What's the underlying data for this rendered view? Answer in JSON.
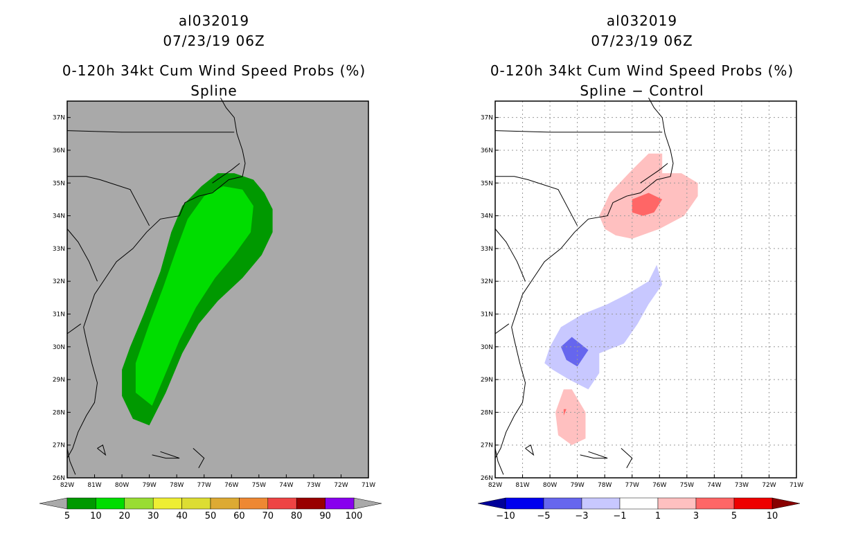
{
  "panels": [
    {
      "storm_id": "al032019",
      "datetime": "07/23/19 06Z",
      "title": "0-120h 34kt Cum Wind Speed Probs (%)",
      "subtitle": "Spline",
      "map_background": "#a9a9a9",
      "colorbar": {
        "under_color": "#a9a9a9",
        "over_color": "#a9a9a9",
        "bins": [
          {
            "color": "#009900"
          },
          {
            "color": "#00dd00"
          },
          {
            "color": "#99dd33"
          },
          {
            "color": "#eeee33"
          },
          {
            "color": "#dddd33"
          },
          {
            "color": "#ddaa33"
          },
          {
            "color": "#ee8833"
          },
          {
            "color": "#ee4444"
          },
          {
            "color": "#990000"
          },
          {
            "color": "#8800ee"
          }
        ],
        "labels": [
          "5",
          "10",
          "20",
          "30",
          "40",
          "50",
          "60",
          "70",
          "80",
          "90",
          "100"
        ]
      }
    },
    {
      "storm_id": "al032019",
      "datetime": "07/23/19 06Z",
      "title": "0-120h 34kt Cum Wind Speed Probs (%)",
      "subtitle": "Spline − Control",
      "map_background": "#ffffff",
      "colorbar": {
        "under_color": "#000099",
        "over_color": "#880000",
        "bins": [
          {
            "color": "#0000ee"
          },
          {
            "color": "#6666ee"
          },
          {
            "color": "#c8c8ff"
          },
          {
            "color": "#ffffff"
          },
          {
            "color": "#ffc0c0"
          },
          {
            "color": "#ff6666"
          },
          {
            "color": "#ee0000"
          }
        ],
        "labels": [
          "−10",
          "−5",
          "−3",
          "−1",
          "1",
          "3",
          "5",
          "10"
        ]
      }
    }
  ],
  "axes": {
    "lon_labels": [
      "82W",
      "81W",
      "80W",
      "79W",
      "78W",
      "77W",
      "76W",
      "75W",
      "74W",
      "73W",
      "72W",
      "71W"
    ],
    "lat_labels": [
      "26N",
      "27N",
      "28N",
      "29N",
      "30N",
      "31N",
      "32N",
      "33N",
      "34N",
      "35N",
      "36N",
      "37N"
    ]
  },
  "chart_data": [
    {
      "type": "map-contour",
      "field": "0-120h 34kt cumulative wind speed probability (%)",
      "domain": {
        "lon": [
          -82,
          -71
        ],
        "lat": [
          26,
          37.5
        ]
      },
      "filled_regions": [
        {
          "level_min": 5,
          "color": "#009900",
          "outline_lonlat": [
            [
              -79.0,
              27.6
            ],
            [
              -79.6,
              27.8
            ],
            [
              -80.0,
              28.5
            ],
            [
              -80.0,
              29.3
            ],
            [
              -79.7,
              30.0
            ],
            [
              -79.2,
              31.0
            ],
            [
              -78.6,
              32.3
            ],
            [
              -78.2,
              33.5
            ],
            [
              -77.8,
              34.3
            ],
            [
              -77.1,
              34.9
            ],
            [
              -76.5,
              35.3
            ],
            [
              -75.9,
              35.3
            ],
            [
              -75.2,
              35.1
            ],
            [
              -74.8,
              34.7
            ],
            [
              -74.5,
              34.2
            ],
            [
              -74.5,
              33.5
            ],
            [
              -74.9,
              32.8
            ],
            [
              -75.6,
              32.1
            ],
            [
              -76.5,
              31.4
            ],
            [
              -77.2,
              30.7
            ],
            [
              -77.8,
              29.8
            ],
            [
              -78.4,
              28.6
            ],
            [
              -79.0,
              27.6
            ]
          ]
        },
        {
          "level_min": 10,
          "color": "#00dd00",
          "outline_lonlat": [
            [
              -78.9,
              28.2
            ],
            [
              -79.5,
              28.6
            ],
            [
              -79.5,
              29.5
            ],
            [
              -79.0,
              30.7
            ],
            [
              -78.5,
              31.8
            ],
            [
              -78.0,
              33.0
            ],
            [
              -77.6,
              33.9
            ],
            [
              -77.0,
              34.6
            ],
            [
              -76.3,
              34.9
            ],
            [
              -75.6,
              34.8
            ],
            [
              -75.2,
              34.3
            ],
            [
              -75.3,
              33.5
            ],
            [
              -75.9,
              32.8
            ],
            [
              -76.6,
              32.1
            ],
            [
              -77.3,
              31.2
            ],
            [
              -77.9,
              30.2
            ],
            [
              -78.5,
              29.0
            ],
            [
              -78.9,
              28.2
            ]
          ]
        }
      ]
    },
    {
      "type": "map-contour",
      "field": "Spline minus Control probability difference (%)",
      "domain": {
        "lon": [
          -82,
          -71
        ],
        "lat": [
          26,
          37.5
        ]
      },
      "filled_regions": [
        {
          "level_range": [
            1,
            3
          ],
          "color": "#ffc0c0",
          "outline_lonlat": [
            [
              -77.6,
              33.4
            ],
            [
              -78.0,
              33.6
            ],
            [
              -78.2,
              34.0
            ],
            [
              -77.8,
              34.7
            ],
            [
              -77.0,
              35.4
            ],
            [
              -76.4,
              35.9
            ],
            [
              -75.9,
              35.9
            ],
            [
              -75.9,
              35.3
            ],
            [
              -75.2,
              35.3
            ],
            [
              -74.6,
              35.0
            ],
            [
              -74.6,
              34.6
            ],
            [
              -75.1,
              34.0
            ],
            [
              -76.0,
              33.6
            ],
            [
              -77.0,
              33.3
            ],
            [
              -77.6,
              33.4
            ]
          ]
        },
        {
          "level_range": [
            3,
            5
          ],
          "color": "#ff6666",
          "outline_lonlat": [
            [
              -77.0,
              34.5
            ],
            [
              -76.4,
              34.7
            ],
            [
              -75.9,
              34.5
            ],
            [
              -76.2,
              34.1
            ],
            [
              -76.6,
              34.0
            ],
            [
              -77.0,
              34.1
            ],
            [
              -77.0,
              34.5
            ]
          ]
        },
        {
          "level_range": [
            -3,
            -1
          ],
          "color": "#c8c8ff",
          "outline_lonlat": [
            [
              -80.2,
              29.5
            ],
            [
              -79.9,
              29.3
            ],
            [
              -79.3,
              29.0
            ],
            [
              -78.6,
              28.7
            ],
            [
              -78.2,
              29.2
            ],
            [
              -78.2,
              29.8
            ],
            [
              -77.3,
              30.1
            ],
            [
              -76.8,
              30.7
            ],
            [
              -76.4,
              31.3
            ],
            [
              -75.9,
              31.9
            ],
            [
              -76.1,
              32.5
            ],
            [
              -76.4,
              32.0
            ],
            [
              -77.2,
              31.6
            ],
            [
              -77.9,
              31.3
            ],
            [
              -78.8,
              31.0
            ],
            [
              -79.6,
              30.6
            ],
            [
              -80.0,
              30.0
            ],
            [
              -80.2,
              29.5
            ]
          ]
        },
        {
          "level_range": [
            -5,
            -3
          ],
          "color": "#6666ee",
          "outline_lonlat": [
            [
              -79.6,
              30.0
            ],
            [
              -79.2,
              30.3
            ],
            [
              -78.6,
              29.9
            ],
            [
              -79.0,
              29.4
            ],
            [
              -79.4,
              29.6
            ],
            [
              -79.6,
              30.0
            ]
          ]
        },
        {
          "level_range": [
            1,
            3
          ],
          "color": "#ffc0c0",
          "outline_lonlat": [
            [
              -79.8,
              28.0
            ],
            [
              -79.5,
              28.7
            ],
            [
              -79.2,
              28.7
            ],
            [
              -78.7,
              28.0
            ],
            [
              -78.7,
              27.2
            ],
            [
              -79.2,
              27.0
            ],
            [
              -79.7,
              27.3
            ],
            [
              -79.8,
              28.0
            ]
          ]
        },
        {
          "level_range": [
            3,
            5
          ],
          "color": "#ff6666",
          "outline_lonlat": [
            [
              -79.5,
              28.1
            ],
            [
              -79.4,
              28.1
            ],
            [
              -79.5,
              27.9
            ]
          ]
        }
      ]
    }
  ]
}
